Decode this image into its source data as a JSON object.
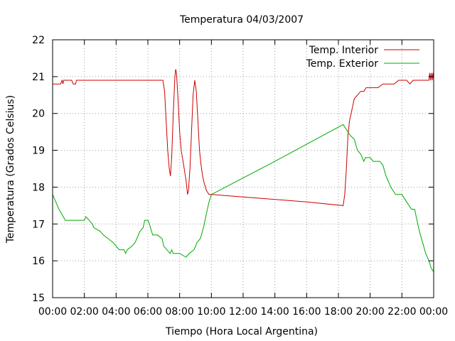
{
  "chart_data": {
    "type": "line",
    "title": "Temperatura 04/03/2007",
    "xlabel": "Tiempo (Hora Local Argentina)",
    "ylabel": "Temperatura (Grados Celsius)",
    "xlim": [
      0,
      24
    ],
    "ylim": [
      15,
      22
    ],
    "grid": true,
    "legend_position": "top-right",
    "x_ticks": [
      {
        "value": 0,
        "label": "00:00"
      },
      {
        "value": 2,
        "label": "02:00"
      },
      {
        "value": 4,
        "label": "04:00"
      },
      {
        "value": 6,
        "label": "06:00"
      },
      {
        "value": 8,
        "label": "08:00"
      },
      {
        "value": 10,
        "label": "10:00"
      },
      {
        "value": 12,
        "label": "12:00"
      },
      {
        "value": 14,
        "label": "14:00"
      },
      {
        "value": 16,
        "label": "16:00"
      },
      {
        "value": 18,
        "label": "18:00"
      },
      {
        "value": 20,
        "label": "20:00"
      },
      {
        "value": 22,
        "label": "22:00"
      },
      {
        "value": 24,
        "label": "00:00"
      }
    ],
    "y_ticks": [
      {
        "value": 15,
        "label": "15"
      },
      {
        "value": 16,
        "label": "16"
      },
      {
        "value": 17,
        "label": "17"
      },
      {
        "value": 18,
        "label": "18"
      },
      {
        "value": 19,
        "label": "19"
      },
      {
        "value": 20,
        "label": "20"
      },
      {
        "value": 21,
        "label": "21"
      },
      {
        "value": 22,
        "label": "22"
      }
    ],
    "series": [
      {
        "name": "Temp. Interior",
        "color": "#cc0000",
        "points": [
          [
            0.0,
            20.8
          ],
          [
            0.5,
            20.8
          ],
          [
            0.6,
            20.9
          ],
          [
            0.65,
            20.8
          ],
          [
            0.7,
            20.9
          ],
          [
            1.2,
            20.9
          ],
          [
            1.3,
            20.8
          ],
          [
            1.45,
            20.8
          ],
          [
            1.5,
            20.9
          ],
          [
            3.0,
            20.9
          ],
          [
            5.0,
            20.9
          ],
          [
            6.5,
            20.9
          ],
          [
            6.95,
            20.9
          ],
          [
            7.05,
            20.6
          ],
          [
            7.15,
            19.8
          ],
          [
            7.25,
            19.0
          ],
          [
            7.35,
            18.5
          ],
          [
            7.42,
            18.3
          ],
          [
            7.5,
            18.8
          ],
          [
            7.6,
            20.0
          ],
          [
            7.7,
            21.0
          ],
          [
            7.75,
            21.2
          ],
          [
            7.8,
            21.1
          ],
          [
            7.9,
            20.4
          ],
          [
            8.0,
            19.5
          ],
          [
            8.1,
            19.0
          ],
          [
            8.25,
            18.6
          ],
          [
            8.4,
            18.2
          ],
          [
            8.5,
            17.8
          ],
          [
            8.55,
            17.9
          ],
          [
            8.65,
            18.5
          ],
          [
            8.75,
            19.5
          ],
          [
            8.85,
            20.5
          ],
          [
            8.95,
            20.9
          ],
          [
            9.05,
            20.6
          ],
          [
            9.15,
            19.8
          ],
          [
            9.25,
            19.0
          ],
          [
            9.35,
            18.6
          ],
          [
            9.45,
            18.3
          ],
          [
            9.55,
            18.1
          ],
          [
            9.7,
            17.9
          ],
          [
            9.85,
            17.8
          ],
          [
            10.0,
            17.8
          ],
          [
            13.0,
            17.7
          ],
          [
            16.0,
            17.6
          ],
          [
            18.3,
            17.5
          ],
          [
            18.4,
            17.8
          ],
          [
            18.5,
            18.5
          ],
          [
            18.6,
            19.4
          ],
          [
            18.7,
            19.8
          ],
          [
            18.8,
            20.0
          ],
          [
            18.9,
            20.2
          ],
          [
            19.0,
            20.4
          ],
          [
            19.2,
            20.5
          ],
          [
            19.4,
            20.6
          ],
          [
            19.6,
            20.6
          ],
          [
            19.75,
            20.7
          ],
          [
            20.0,
            20.7
          ],
          [
            20.5,
            20.7
          ],
          [
            20.8,
            20.8
          ],
          [
            21.2,
            20.8
          ],
          [
            21.5,
            20.8
          ],
          [
            21.8,
            20.9
          ],
          [
            22.3,
            20.9
          ],
          [
            22.5,
            20.8
          ],
          [
            22.7,
            20.9
          ],
          [
            23.2,
            20.9
          ],
          [
            23.7,
            20.9
          ],
          [
            23.75,
            21.1
          ],
          [
            23.8,
            20.9
          ],
          [
            23.85,
            21.1
          ],
          [
            23.9,
            20.9
          ],
          [
            23.95,
            21.1
          ],
          [
            24.0,
            20.9
          ]
        ]
      },
      {
        "name": "Temp. Exterior",
        "color": "#00aa00",
        "points": [
          [
            0.0,
            17.8
          ],
          [
            0.2,
            17.6
          ],
          [
            0.4,
            17.4
          ],
          [
            0.6,
            17.25
          ],
          [
            0.8,
            17.1
          ],
          [
            1.2,
            17.1
          ],
          [
            1.6,
            17.1
          ],
          [
            2.0,
            17.1
          ],
          [
            2.1,
            17.2
          ],
          [
            2.3,
            17.1
          ],
          [
            2.5,
            17.0
          ],
          [
            2.6,
            16.9
          ],
          [
            3.0,
            16.8
          ],
          [
            3.2,
            16.7
          ],
          [
            3.5,
            16.6
          ],
          [
            3.8,
            16.5
          ],
          [
            4.0,
            16.4
          ],
          [
            4.2,
            16.3
          ],
          [
            4.5,
            16.3
          ],
          [
            4.6,
            16.2
          ],
          [
            4.7,
            16.3
          ],
          [
            5.0,
            16.4
          ],
          [
            5.2,
            16.5
          ],
          [
            5.5,
            16.8
          ],
          [
            5.7,
            16.9
          ],
          [
            5.8,
            17.1
          ],
          [
            6.0,
            17.1
          ],
          [
            6.1,
            17.0
          ],
          [
            6.3,
            16.7
          ],
          [
            6.6,
            16.7
          ],
          [
            6.9,
            16.6
          ],
          [
            7.0,
            16.4
          ],
          [
            7.2,
            16.3
          ],
          [
            7.4,
            16.2
          ],
          [
            7.5,
            16.3
          ],
          [
            7.6,
            16.2
          ],
          [
            8.0,
            16.2
          ],
          [
            8.4,
            16.1
          ],
          [
            8.6,
            16.2
          ],
          [
            8.9,
            16.3
          ],
          [
            9.1,
            16.5
          ],
          [
            9.3,
            16.6
          ],
          [
            9.5,
            16.9
          ],
          [
            9.7,
            17.3
          ],
          [
            9.85,
            17.6
          ],
          [
            10.0,
            17.8
          ],
          [
            14.0,
            18.7
          ],
          [
            18.3,
            19.7
          ],
          [
            18.6,
            19.5
          ],
          [
            18.75,
            19.4
          ],
          [
            19.0,
            19.3
          ],
          [
            19.2,
            19.0
          ],
          [
            19.4,
            18.9
          ],
          [
            19.6,
            18.7
          ],
          [
            19.7,
            18.8
          ],
          [
            20.0,
            18.8
          ],
          [
            20.2,
            18.7
          ],
          [
            20.6,
            18.7
          ],
          [
            20.8,
            18.6
          ],
          [
            21.0,
            18.3
          ],
          [
            21.3,
            18.0
          ],
          [
            21.6,
            17.8
          ],
          [
            22.0,
            17.8
          ],
          [
            22.3,
            17.6
          ],
          [
            22.6,
            17.4
          ],
          [
            22.8,
            17.4
          ],
          [
            22.9,
            17.2
          ],
          [
            23.1,
            16.8
          ],
          [
            23.3,
            16.5
          ],
          [
            23.5,
            16.2
          ],
          [
            23.7,
            16.0
          ],
          [
            23.85,
            15.8
          ],
          [
            24.0,
            15.7
          ]
        ]
      }
    ]
  }
}
